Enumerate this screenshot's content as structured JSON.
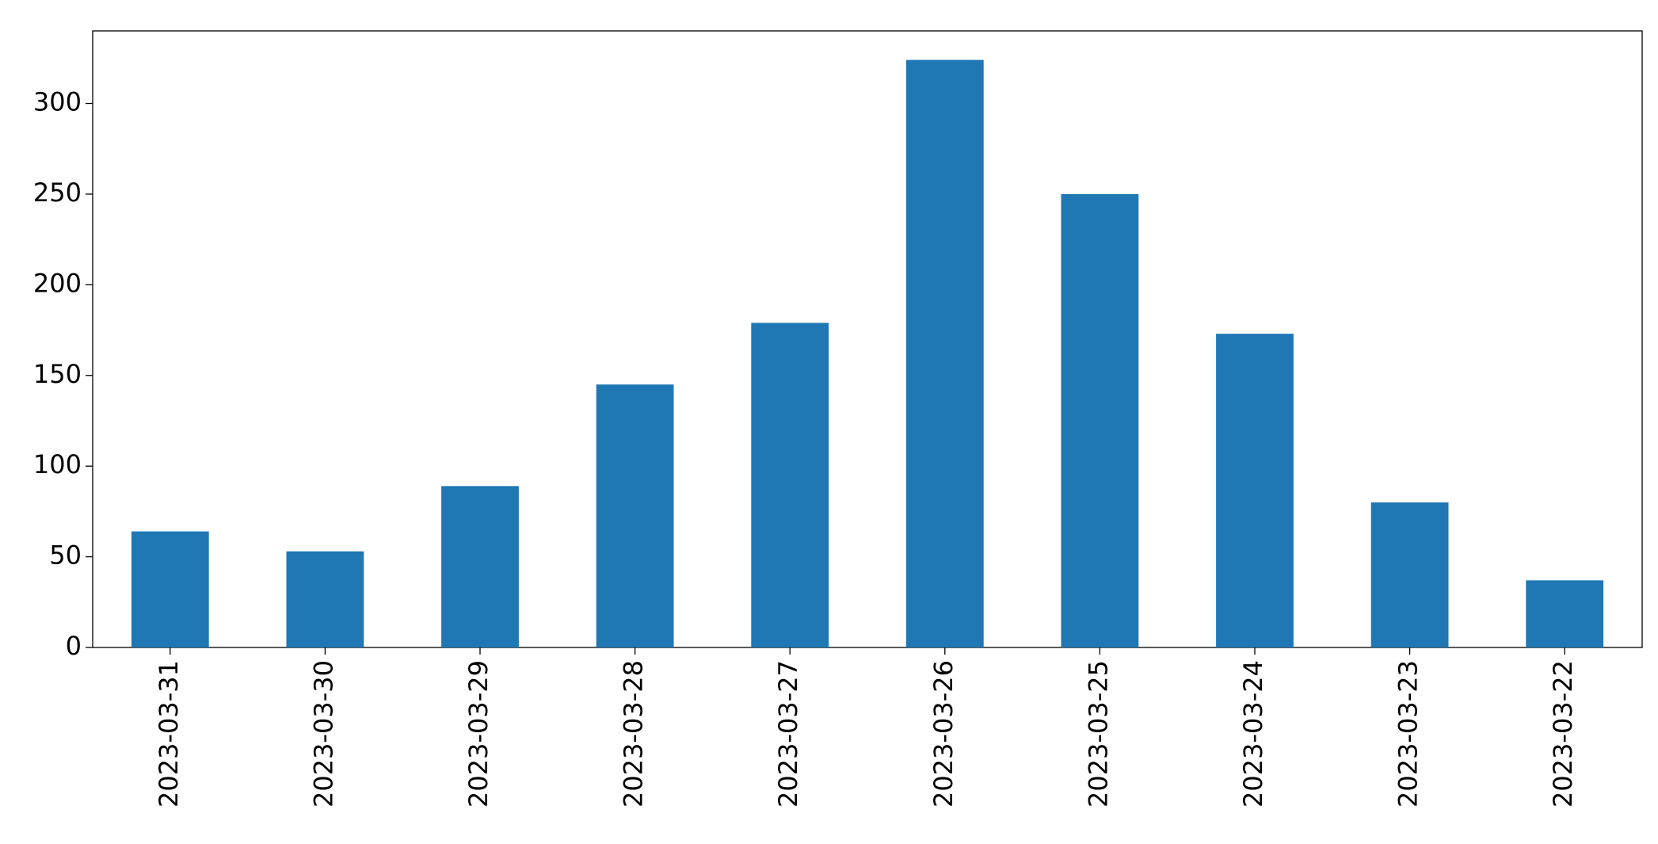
{
  "chart_data": {
    "type": "bar",
    "categories": [
      "2023-03-31",
      "2023-03-30",
      "2023-03-29",
      "2023-03-28",
      "2023-03-27",
      "2023-03-26",
      "2023-03-25",
      "2023-03-24",
      "2023-03-23",
      "2023-03-22"
    ],
    "values": [
      64,
      53,
      89,
      145,
      179,
      324,
      250,
      173,
      80,
      37
    ],
    "color": "#1f77b4",
    "ylim": [
      0,
      340
    ],
    "yticks": [
      0,
      50,
      100,
      150,
      200,
      250,
      300
    ],
    "grid": false
  }
}
